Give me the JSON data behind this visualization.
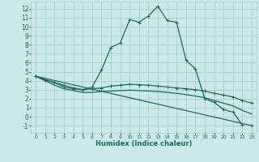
{
  "xlabel": "Humidex (Indice chaleur)",
  "bg_color": "#cce9e9",
  "grid_color": "#aacccc",
  "line_color": "#1a6b5a",
  "xlim": [
    -0.5,
    23.5
  ],
  "ylim": [
    -1.8,
    12.8
  ],
  "xticks": [
    0,
    1,
    2,
    3,
    4,
    5,
    6,
    7,
    8,
    9,
    10,
    11,
    12,
    13,
    14,
    15,
    16,
    17,
    18,
    19,
    20,
    21,
    22,
    23
  ],
  "yticks": [
    -1,
    0,
    1,
    2,
    3,
    4,
    5,
    6,
    7,
    8,
    9,
    10,
    11,
    12
  ],
  "series": [
    {
      "x": [
        0,
        1,
        2,
        3,
        4,
        5,
        6,
        7,
        8,
        9,
        10,
        11,
        12,
        13,
        14,
        15,
        16,
        17,
        18,
        19,
        20,
        21,
        22
      ],
      "y": [
        4.5,
        4.1,
        3.8,
        3.5,
        3.2,
        3.0,
        3.3,
        5.2,
        7.7,
        8.2,
        10.8,
        10.5,
        11.2,
        12.3,
        10.7,
        10.5,
        6.3,
        5.3,
        2.0,
        1.6,
        0.8,
        0.5,
        -0.9
      ],
      "marker": true,
      "lw": 0.9
    },
    {
      "x": [
        0,
        1,
        2,
        3,
        4,
        5,
        6,
        7,
        8,
        9,
        10,
        11,
        12,
        13,
        14,
        15,
        16,
        17,
        18,
        19,
        20,
        21,
        22,
        23
      ],
      "y": [
        4.5,
        4.1,
        3.8,
        3.3,
        3.1,
        3.0,
        3.1,
        3.2,
        3.4,
        3.5,
        3.6,
        3.55,
        3.5,
        3.4,
        3.3,
        3.2,
        3.1,
        3.0,
        2.85,
        2.6,
        2.4,
        2.2,
        1.8,
        1.5
      ],
      "marker": true,
      "lw": 0.9
    },
    {
      "x": [
        0,
        1,
        2,
        3,
        4,
        5,
        6,
        7,
        8,
        9,
        10,
        11,
        12,
        13,
        14,
        15,
        16,
        17,
        18,
        19,
        20,
        21,
        22,
        23
      ],
      "y": [
        4.5,
        4.0,
        3.5,
        3.1,
        2.9,
        2.7,
        2.7,
        2.8,
        2.85,
        2.9,
        2.95,
        2.9,
        2.85,
        2.8,
        2.7,
        2.6,
        2.45,
        2.3,
        2.1,
        1.8,
        1.5,
        1.2,
        0.7,
        0.3
      ],
      "marker": false,
      "lw": 0.9
    },
    {
      "x": [
        0,
        23
      ],
      "y": [
        4.5,
        -1.0
      ],
      "marker": true,
      "lw": 0.9
    }
  ]
}
